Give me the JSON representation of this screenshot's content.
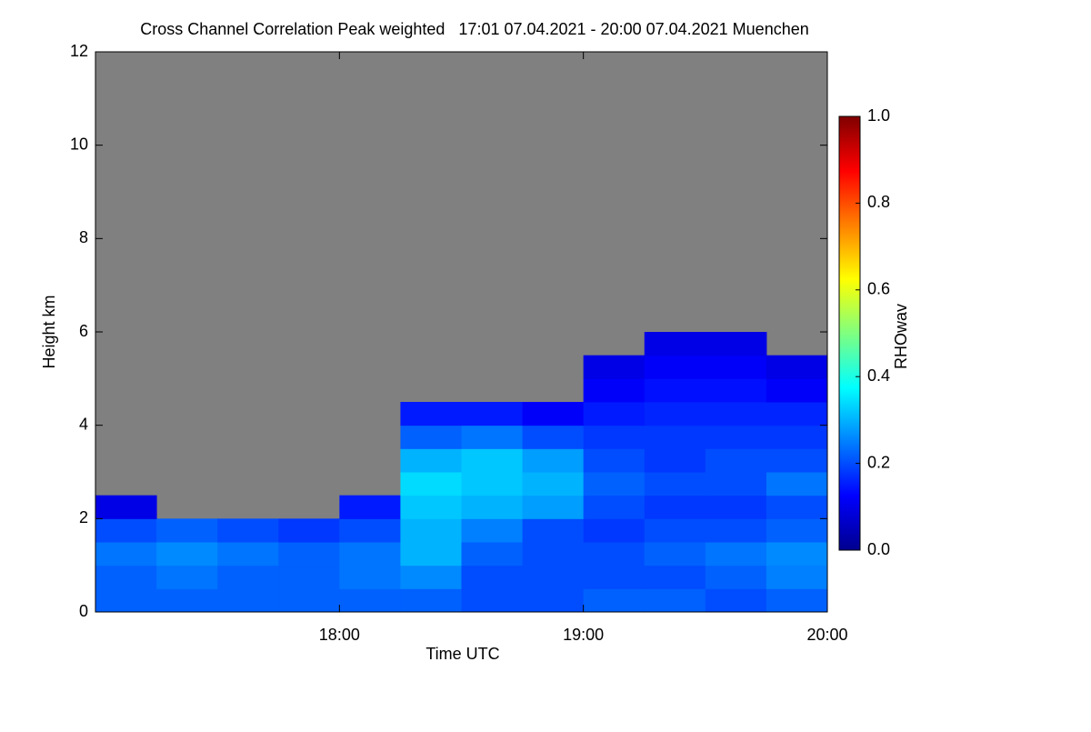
{
  "chart_data": {
    "type": "heatmap",
    "title": "Cross Channel Correlation Peak weighted   17:01 07.04.2021 - 20:00 07.04.2021 Muenchen",
    "x_label": "Time UTC",
    "y_label": "Height km",
    "colorbar_label": "RHOwav",
    "colormap": "jet",
    "missing_color": "#808080",
    "xlim": [
      17,
      20
    ],
    "xticks": [
      {
        "value": 18,
        "label": "18:00"
      },
      {
        "value": 19,
        "label": "19:00"
      },
      {
        "value": 20,
        "label": "20:00"
      }
    ],
    "ylim": [
      0,
      12
    ],
    "yticks": [
      0,
      2,
      4,
      6,
      8,
      10,
      12
    ],
    "clim": [
      0,
      1
    ],
    "cticks": [
      {
        "value": 0,
        "label": "0.0"
      },
      {
        "value": 0.2,
        "label": "0.2"
      },
      {
        "value": 0.4,
        "label": "0.4"
      },
      {
        "value": 0.6,
        "label": "0.6"
      },
      {
        "value": 0.8,
        "label": "0.8"
      },
      {
        "value": 1,
        "label": "1.0"
      }
    ],
    "x_bins": [
      17,
      17.25,
      17.5,
      17.75,
      18,
      18.25,
      18.5,
      18.75,
      19,
      19.25,
      19.5,
      19.75,
      20
    ],
    "y_bins": [
      0,
      0.5,
      1,
      1.5,
      2,
      2.5,
      3,
      3.5,
      4,
      4.5,
      5,
      5.5,
      6
    ],
    "z": [
      [
        0.22,
        0.22,
        0.22,
        0.22,
        0.22,
        0.22,
        0.2,
        0.2,
        0.22,
        0.22,
        0.2,
        0.22
      ],
      [
        0.22,
        0.24,
        0.22,
        0.22,
        0.24,
        0.26,
        0.2,
        0.2,
        0.2,
        0.2,
        0.22,
        0.25
      ],
      [
        0.24,
        0.26,
        0.24,
        0.22,
        0.24,
        0.3,
        0.22,
        0.2,
        0.2,
        0.22,
        0.24,
        0.26
      ],
      [
        0.2,
        0.22,
        0.2,
        0.18,
        0.2,
        0.3,
        0.25,
        0.2,
        0.18,
        0.2,
        0.2,
        0.22
      ],
      [
        0.1,
        null,
        null,
        null,
        0.15,
        0.32,
        0.3,
        0.28,
        0.2,
        0.18,
        0.18,
        0.2
      ],
      [
        null,
        null,
        null,
        null,
        null,
        0.34,
        0.32,
        0.3,
        0.22,
        0.2,
        0.2,
        0.24
      ],
      [
        null,
        null,
        null,
        null,
        null,
        0.3,
        0.32,
        0.28,
        0.2,
        0.18,
        0.2,
        0.2
      ],
      [
        null,
        null,
        null,
        null,
        null,
        0.22,
        0.24,
        0.2,
        0.18,
        0.18,
        0.18,
        0.18
      ],
      [
        null,
        null,
        null,
        null,
        null,
        0.15,
        0.15,
        0.12,
        0.15,
        0.16,
        0.16,
        0.16
      ],
      [
        null,
        null,
        null,
        null,
        null,
        null,
        null,
        null,
        0.12,
        0.14,
        0.14,
        0.12
      ],
      [
        null,
        null,
        null,
        null,
        null,
        null,
        null,
        null,
        0.1,
        0.12,
        0.12,
        0.1
      ],
      [
        null,
        null,
        null,
        null,
        null,
        null,
        null,
        null,
        null,
        0.1,
        0.1,
        null
      ]
    ]
  }
}
